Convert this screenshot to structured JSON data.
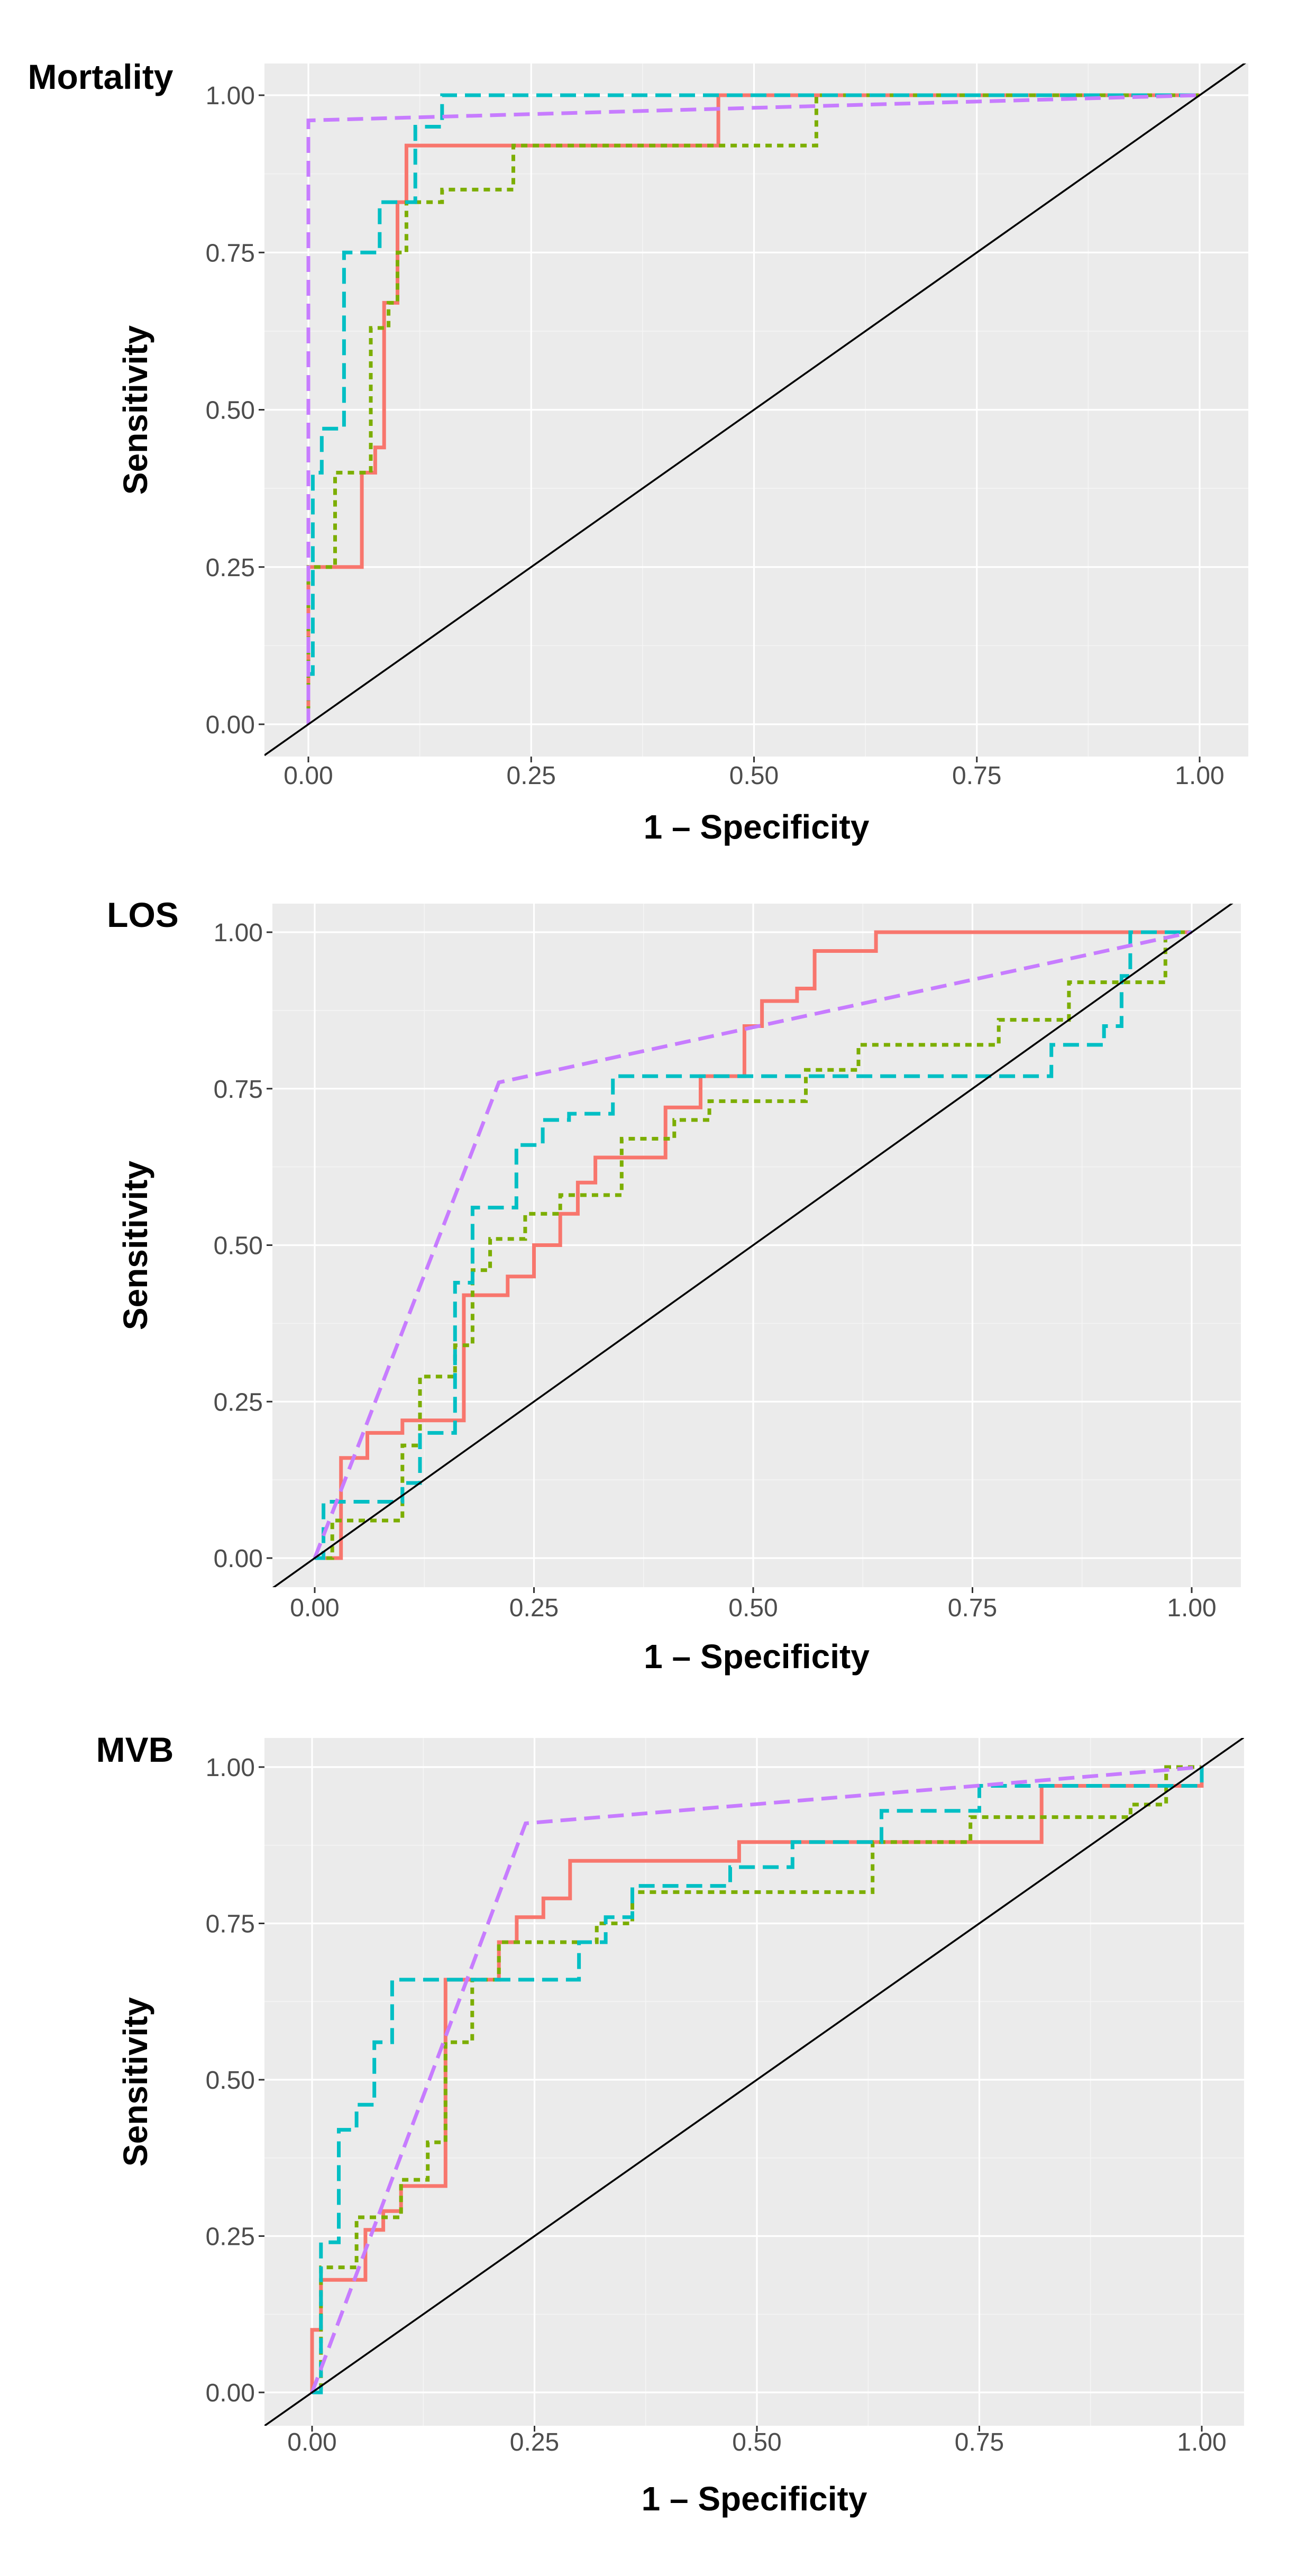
{
  "chart_data": [
    {
      "type": "line",
      "title": "Mortality",
      "xlabel": "1 – Specificity",
      "ylabel": "Sensitivity",
      "xlim": [
        0,
        1
      ],
      "ylim": [
        0,
        1
      ],
      "xticks": [
        "0.00",
        "0.25",
        "0.50",
        "0.75",
        "1.00"
      ],
      "yticks": [
        "0.00",
        "0.25",
        "0.50",
        "0.75",
        "1.00"
      ],
      "reference_line": "diagonal",
      "series": [
        {
          "name": "red",
          "color": "#F8766D",
          "dash": "solid",
          "points": [
            [
              0,
              0
            ],
            [
              0,
              0.25
            ],
            [
              0.06,
              0.25
            ],
            [
              0.06,
              0.4
            ],
            [
              0.075,
              0.4
            ],
            [
              0.075,
              0.44
            ],
            [
              0.085,
              0.44
            ],
            [
              0.085,
              0.67
            ],
            [
              0.1,
              0.67
            ],
            [
              0.1,
              0.83
            ],
            [
              0.11,
              0.83
            ],
            [
              0.11,
              0.92
            ],
            [
              0.46,
              0.92
            ],
            [
              0.46,
              1.0
            ],
            [
              1.0,
              1.0
            ]
          ]
        },
        {
          "name": "green",
          "color": "#7CAE00",
          "dash": "dotted",
          "points": [
            [
              0,
              0
            ],
            [
              0,
              0.25
            ],
            [
              0.03,
              0.25
            ],
            [
              0.03,
              0.4
            ],
            [
              0.07,
              0.4
            ],
            [
              0.07,
              0.63
            ],
            [
              0.09,
              0.63
            ],
            [
              0.09,
              0.67
            ],
            [
              0.1,
              0.67
            ],
            [
              0.1,
              0.75
            ],
            [
              0.11,
              0.75
            ],
            [
              0.11,
              0.83
            ],
            [
              0.15,
              0.83
            ],
            [
              0.15,
              0.85
            ],
            [
              0.23,
              0.85
            ],
            [
              0.23,
              0.92
            ],
            [
              0.57,
              0.92
            ],
            [
              0.57,
              1.0
            ],
            [
              1.0,
              1.0
            ]
          ]
        },
        {
          "name": "cyan",
          "color": "#00BFC4",
          "dash": "dashed",
          "points": [
            [
              0,
              0
            ],
            [
              0,
              0.08
            ],
            [
              0.005,
              0.08
            ],
            [
              0.005,
              0.4
            ],
            [
              0.015,
              0.4
            ],
            [
              0.015,
              0.47
            ],
            [
              0.04,
              0.47
            ],
            [
              0.04,
              0.75
            ],
            [
              0.08,
              0.75
            ],
            [
              0.08,
              0.83
            ],
            [
              0.12,
              0.83
            ],
            [
              0.12,
              0.95
            ],
            [
              0.15,
              0.95
            ],
            [
              0.15,
              1.0
            ],
            [
              1.0,
              1.0
            ]
          ]
        },
        {
          "name": "purple",
          "color": "#C77CFF",
          "dash": "dashed",
          "points": [
            [
              0,
              0
            ],
            [
              0,
              0.96
            ],
            [
              1.0,
              1.0
            ]
          ]
        }
      ]
    },
    {
      "type": "line",
      "title": "LOS",
      "xlabel": "1 – Specificity",
      "ylabel": "Sensitivity",
      "xlim": [
        0,
        1
      ],
      "ylim": [
        0,
        1
      ],
      "xticks": [
        "0.00",
        "0.25",
        "0.50",
        "0.75",
        "1.00"
      ],
      "yticks": [
        "0.00",
        "0.25",
        "0.50",
        "0.75",
        "1.00"
      ],
      "reference_line": "diagonal",
      "series": [
        {
          "name": "red",
          "color": "#F8766D",
          "dash": "solid",
          "points": [
            [
              0,
              0
            ],
            [
              0.03,
              0
            ],
            [
              0.03,
              0.16
            ],
            [
              0.06,
              0.16
            ],
            [
              0.06,
              0.2
            ],
            [
              0.1,
              0.2
            ],
            [
              0.1,
              0.22
            ],
            [
              0.17,
              0.22
            ],
            [
              0.17,
              0.42
            ],
            [
              0.22,
              0.42
            ],
            [
              0.22,
              0.45
            ],
            [
              0.25,
              0.45
            ],
            [
              0.25,
              0.5
            ],
            [
              0.28,
              0.5
            ],
            [
              0.28,
              0.55
            ],
            [
              0.3,
              0.55
            ],
            [
              0.3,
              0.6
            ],
            [
              0.32,
              0.6
            ],
            [
              0.32,
              0.64
            ],
            [
              0.4,
              0.64
            ],
            [
              0.4,
              0.72
            ],
            [
              0.44,
              0.72
            ],
            [
              0.44,
              0.77
            ],
            [
              0.49,
              0.77
            ],
            [
              0.49,
              0.85
            ],
            [
              0.51,
              0.85
            ],
            [
              0.51,
              0.89
            ],
            [
              0.55,
              0.89
            ],
            [
              0.55,
              0.91
            ],
            [
              0.57,
              0.91
            ],
            [
              0.57,
              0.97
            ],
            [
              0.64,
              0.97
            ],
            [
              0.64,
              1.0
            ],
            [
              1.0,
              1.0
            ]
          ]
        },
        {
          "name": "green",
          "color": "#7CAE00",
          "dash": "dotted",
          "points": [
            [
              0,
              0
            ],
            [
              0.02,
              0
            ],
            [
              0.02,
              0.06
            ],
            [
              0.1,
              0.06
            ],
            [
              0.1,
              0.18
            ],
            [
              0.12,
              0.18
            ],
            [
              0.12,
              0.29
            ],
            [
              0.16,
              0.29
            ],
            [
              0.16,
              0.34
            ],
            [
              0.18,
              0.34
            ],
            [
              0.18,
              0.46
            ],
            [
              0.2,
              0.46
            ],
            [
              0.2,
              0.51
            ],
            [
              0.24,
              0.51
            ],
            [
              0.24,
              0.55
            ],
            [
              0.28,
              0.55
            ],
            [
              0.28,
              0.58
            ],
            [
              0.35,
              0.58
            ],
            [
              0.35,
              0.67
            ],
            [
              0.41,
              0.67
            ],
            [
              0.41,
              0.7
            ],
            [
              0.45,
              0.7
            ],
            [
              0.45,
              0.73
            ],
            [
              0.56,
              0.73
            ],
            [
              0.56,
              0.78
            ],
            [
              0.62,
              0.78
            ],
            [
              0.62,
              0.82
            ],
            [
              0.78,
              0.82
            ],
            [
              0.78,
              0.86
            ],
            [
              0.86,
              0.86
            ],
            [
              0.86,
              0.92
            ],
            [
              0.97,
              0.92
            ],
            [
              0.97,
              1.0
            ],
            [
              1.0,
              1.0
            ]
          ]
        },
        {
          "name": "cyan",
          "color": "#00BFC4",
          "dash": "dashed",
          "points": [
            [
              0,
              0
            ],
            [
              0.01,
              0
            ],
            [
              0.01,
              0.09
            ],
            [
              0.1,
              0.09
            ],
            [
              0.1,
              0.12
            ],
            [
              0.12,
              0.12
            ],
            [
              0.12,
              0.2
            ],
            [
              0.16,
              0.2
            ],
            [
              0.16,
              0.44
            ],
            [
              0.18,
              0.44
            ],
            [
              0.18,
              0.56
            ],
            [
              0.23,
              0.56
            ],
            [
              0.23,
              0.66
            ],
            [
              0.26,
              0.66
            ],
            [
              0.26,
              0.7
            ],
            [
              0.29,
              0.7
            ],
            [
              0.29,
              0.71
            ],
            [
              0.34,
              0.71
            ],
            [
              0.34,
              0.77
            ],
            [
              0.84,
              0.77
            ],
            [
              0.84,
              0.82
            ],
            [
              0.9,
              0.82
            ],
            [
              0.9,
              0.85
            ],
            [
              0.92,
              0.85
            ],
            [
              0.92,
              0.93
            ],
            [
              0.93,
              0.93
            ],
            [
              0.93,
              1.0
            ],
            [
              1.0,
              1.0
            ]
          ]
        },
        {
          "name": "purple",
          "color": "#C77CFF",
          "dash": "dashed",
          "points": [
            [
              0,
              0
            ],
            [
              0.21,
              0.76
            ],
            [
              1.0,
              1.0
            ]
          ]
        }
      ]
    },
    {
      "type": "line",
      "title": "MVB",
      "xlabel": "1 – Specificity",
      "ylabel": "Sensitivity",
      "xlim": [
        0,
        1
      ],
      "ylim": [
        0,
        1
      ],
      "xticks": [
        "0.00",
        "0.25",
        "0.50",
        "0.75",
        "1.00"
      ],
      "yticks": [
        "0.00",
        "0.25",
        "0.50",
        "0.75",
        "1.00"
      ],
      "reference_line": "diagonal",
      "series": [
        {
          "name": "red",
          "color": "#F8766D",
          "dash": "solid",
          "points": [
            [
              0,
              0
            ],
            [
              0,
              0.1
            ],
            [
              0.01,
              0.1
            ],
            [
              0.01,
              0.18
            ],
            [
              0.06,
              0.18
            ],
            [
              0.06,
              0.26
            ],
            [
              0.08,
              0.26
            ],
            [
              0.08,
              0.29
            ],
            [
              0.1,
              0.29
            ],
            [
              0.1,
              0.33
            ],
            [
              0.15,
              0.33
            ],
            [
              0.15,
              0.66
            ],
            [
              0.21,
              0.66
            ],
            [
              0.21,
              0.72
            ],
            [
              0.23,
              0.72
            ],
            [
              0.23,
              0.76
            ],
            [
              0.26,
              0.76
            ],
            [
              0.26,
              0.79
            ],
            [
              0.29,
              0.79
            ],
            [
              0.29,
              0.85
            ],
            [
              0.48,
              0.85
            ],
            [
              0.48,
              0.88
            ],
            [
              0.82,
              0.88
            ],
            [
              0.82,
              0.97
            ],
            [
              1.0,
              0.97
            ],
            [
              1.0,
              1.0
            ]
          ]
        },
        {
          "name": "green",
          "color": "#7CAE00",
          "dash": "dotted",
          "points": [
            [
              0,
              0
            ],
            [
              0.01,
              0
            ],
            [
              0.01,
              0.2
            ],
            [
              0.05,
              0.2
            ],
            [
              0.05,
              0.28
            ],
            [
              0.1,
              0.28
            ],
            [
              0.1,
              0.34
            ],
            [
              0.13,
              0.34
            ],
            [
              0.13,
              0.4
            ],
            [
              0.15,
              0.4
            ],
            [
              0.15,
              0.56
            ],
            [
              0.18,
              0.56
            ],
            [
              0.18,
              0.66
            ],
            [
              0.21,
              0.66
            ],
            [
              0.21,
              0.72
            ],
            [
              0.32,
              0.72
            ],
            [
              0.32,
              0.75
            ],
            [
              0.36,
              0.75
            ],
            [
              0.36,
              0.8
            ],
            [
              0.63,
              0.8
            ],
            [
              0.63,
              0.88
            ],
            [
              0.74,
              0.88
            ],
            [
              0.74,
              0.92
            ],
            [
              0.92,
              0.92
            ],
            [
              0.92,
              0.94
            ],
            [
              0.96,
              0.94
            ],
            [
              0.96,
              1.0
            ],
            [
              1.0,
              1.0
            ]
          ]
        },
        {
          "name": "cyan",
          "color": "#00BFC4",
          "dash": "dashed",
          "points": [
            [
              0,
              0
            ],
            [
              0.01,
              0
            ],
            [
              0.01,
              0.24
            ],
            [
              0.03,
              0.24
            ],
            [
              0.03,
              0.42
            ],
            [
              0.05,
              0.42
            ],
            [
              0.05,
              0.46
            ],
            [
              0.07,
              0.46
            ],
            [
              0.07,
              0.56
            ],
            [
              0.09,
              0.56
            ],
            [
              0.09,
              0.66
            ],
            [
              0.3,
              0.66
            ],
            [
              0.3,
              0.72
            ],
            [
              0.33,
              0.72
            ],
            [
              0.33,
              0.76
            ],
            [
              0.36,
              0.76
            ],
            [
              0.36,
              0.81
            ],
            [
              0.47,
              0.81
            ],
            [
              0.47,
              0.84
            ],
            [
              0.54,
              0.84
            ],
            [
              0.54,
              0.88
            ],
            [
              0.64,
              0.88
            ],
            [
              0.64,
              0.93
            ],
            [
              0.75,
              0.93
            ],
            [
              0.75,
              0.97
            ],
            [
              1.0,
              0.97
            ],
            [
              1.0,
              1.0
            ]
          ]
        },
        {
          "name": "purple",
          "color": "#C77CFF",
          "dash": "dashed",
          "points": [
            [
              0,
              0
            ],
            [
              0.24,
              0.91
            ],
            [
              1.0,
              1.0
            ]
          ]
        }
      ]
    }
  ]
}
